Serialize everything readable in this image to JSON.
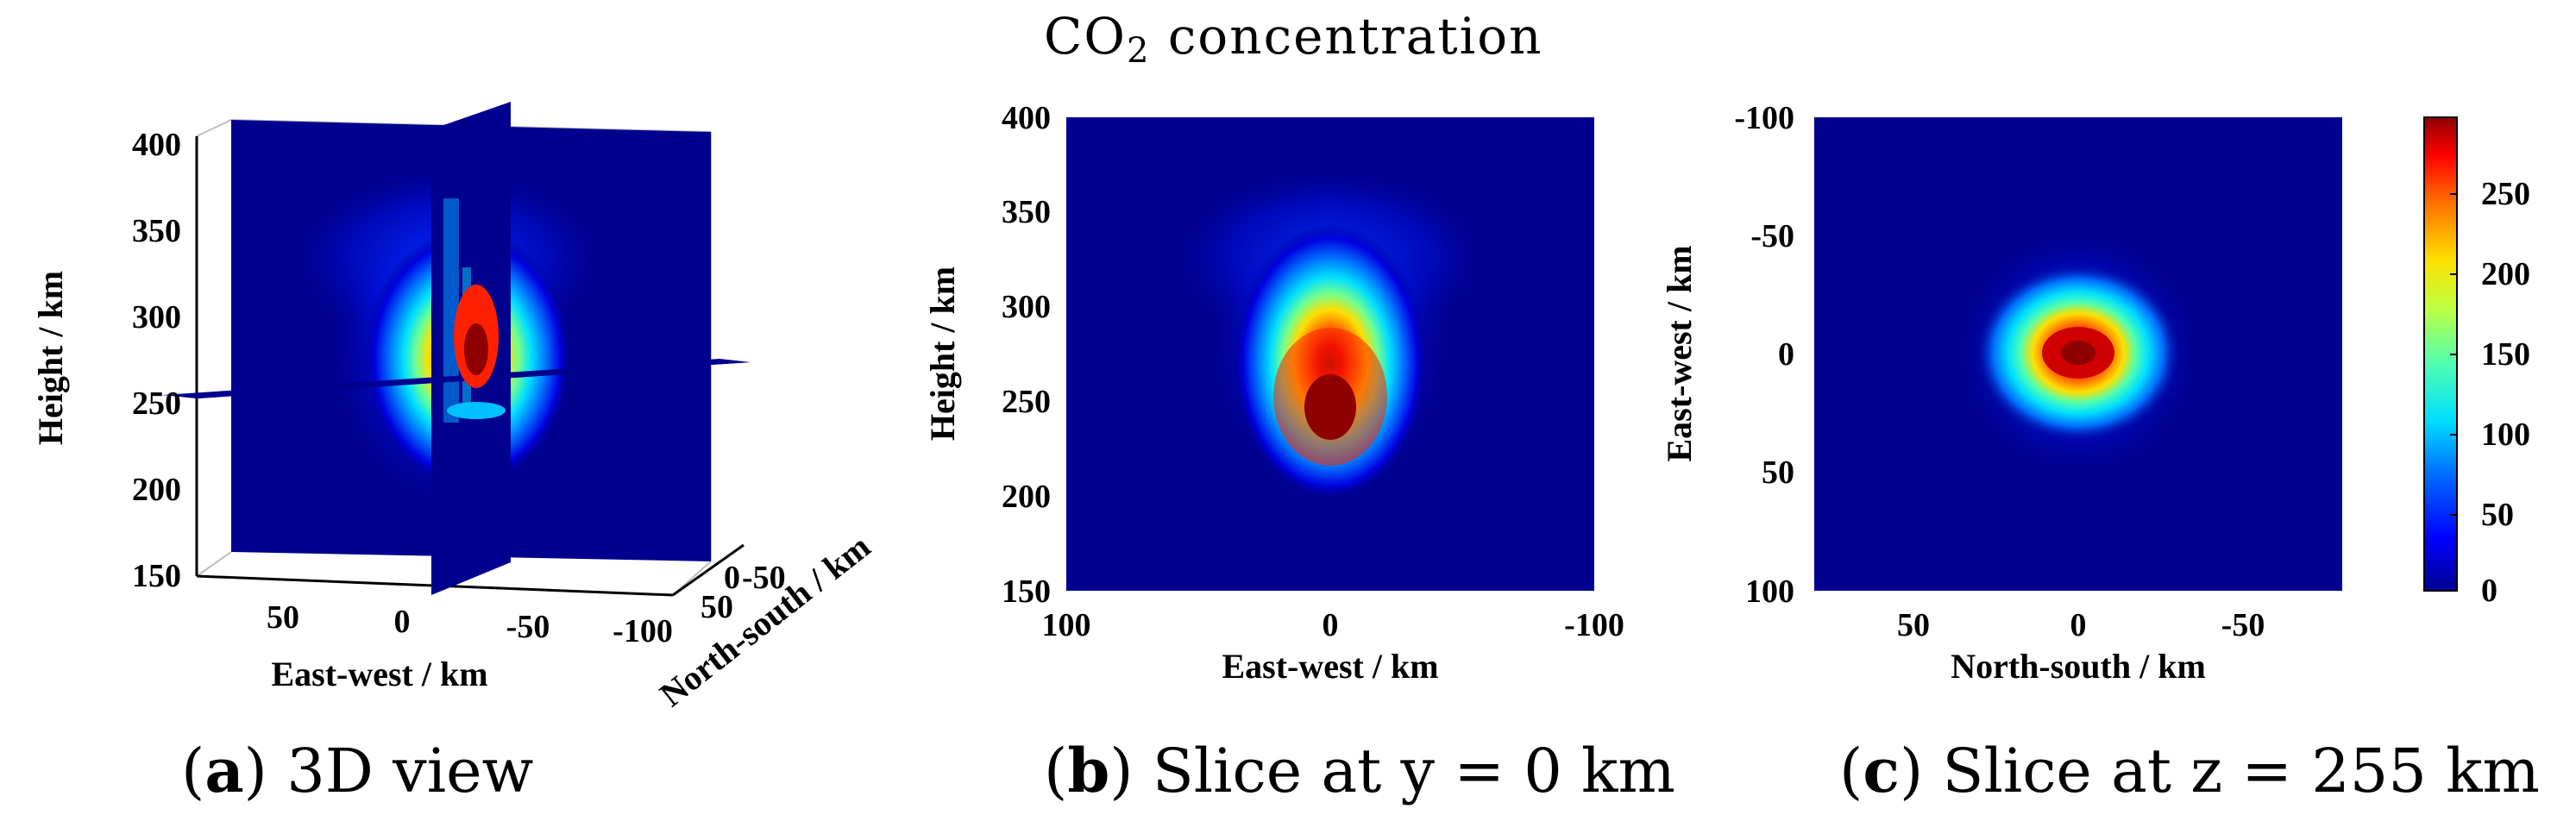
{
  "figure": {
    "title_main": "CO",
    "title_sub": "2",
    "title_rest": " concentration"
  },
  "colormap": [
    "#00008f",
    "#0000ff",
    "#0070ff",
    "#00dfff",
    "#50ffaf",
    "#c0ff3f",
    "#ffdf00",
    "#ff7000",
    "#ff0000",
    "#8f0000"
  ],
  "chart_data": [
    {
      "type": "heatmap",
      "panel": "a",
      "caption_letter": "a",
      "caption_text": " 3D view",
      "view": "3D slices",
      "x_ticks": [
        "50",
        "0",
        "-50",
        "-100"
      ],
      "y_ticks": [
        "-50",
        "0",
        "50"
      ],
      "z_ticks": [
        "400",
        "350",
        "300",
        "250",
        "200",
        "150"
      ],
      "xlabel": "East-west / km",
      "ylabel": "North-south / km",
      "zlabel": "Height / km",
      "xlim": [
        100,
        -100
      ],
      "ylim": [
        -100,
        100
      ],
      "zlim": [
        150,
        400
      ],
      "slices": [
        "x = 0 km",
        "y = 0 km",
        "z = 255 km"
      ]
    },
    {
      "type": "heatmap",
      "panel": "b",
      "caption_letter": "b",
      "caption_text": " Slice at y = 0 km",
      "x_ticks": [
        "100",
        "0",
        "-100"
      ],
      "y_ticks": [
        "400",
        "350",
        "300",
        "250",
        "200",
        "150"
      ],
      "xlabel": "East-west / km",
      "ylabel": "Height / km",
      "xlim": [
        100,
        -100
      ],
      "ylim": [
        150,
        400
      ],
      "peak": {
        "x": 0,
        "y": 260,
        "value": 295
      }
    },
    {
      "type": "heatmap",
      "panel": "c",
      "caption_letter": "c",
      "caption_text": " Slice at z = 255 km",
      "x_ticks": [
        "50",
        "0",
        "-50"
      ],
      "y_ticks": [
        "-100",
        "-50",
        "0",
        "50",
        "100"
      ],
      "xlabel": "North-south / km",
      "ylabel": "East-west / km",
      "xlim": [
        80,
        -80
      ],
      "ylim": [
        -100,
        100
      ],
      "peak": {
        "x": 0,
        "y": 0,
        "value": 295
      }
    }
  ],
  "colorbar": {
    "ticks": [
      "250",
      "200",
      "150",
      "100",
      "50",
      "0"
    ],
    "range": [
      0,
      295
    ]
  }
}
